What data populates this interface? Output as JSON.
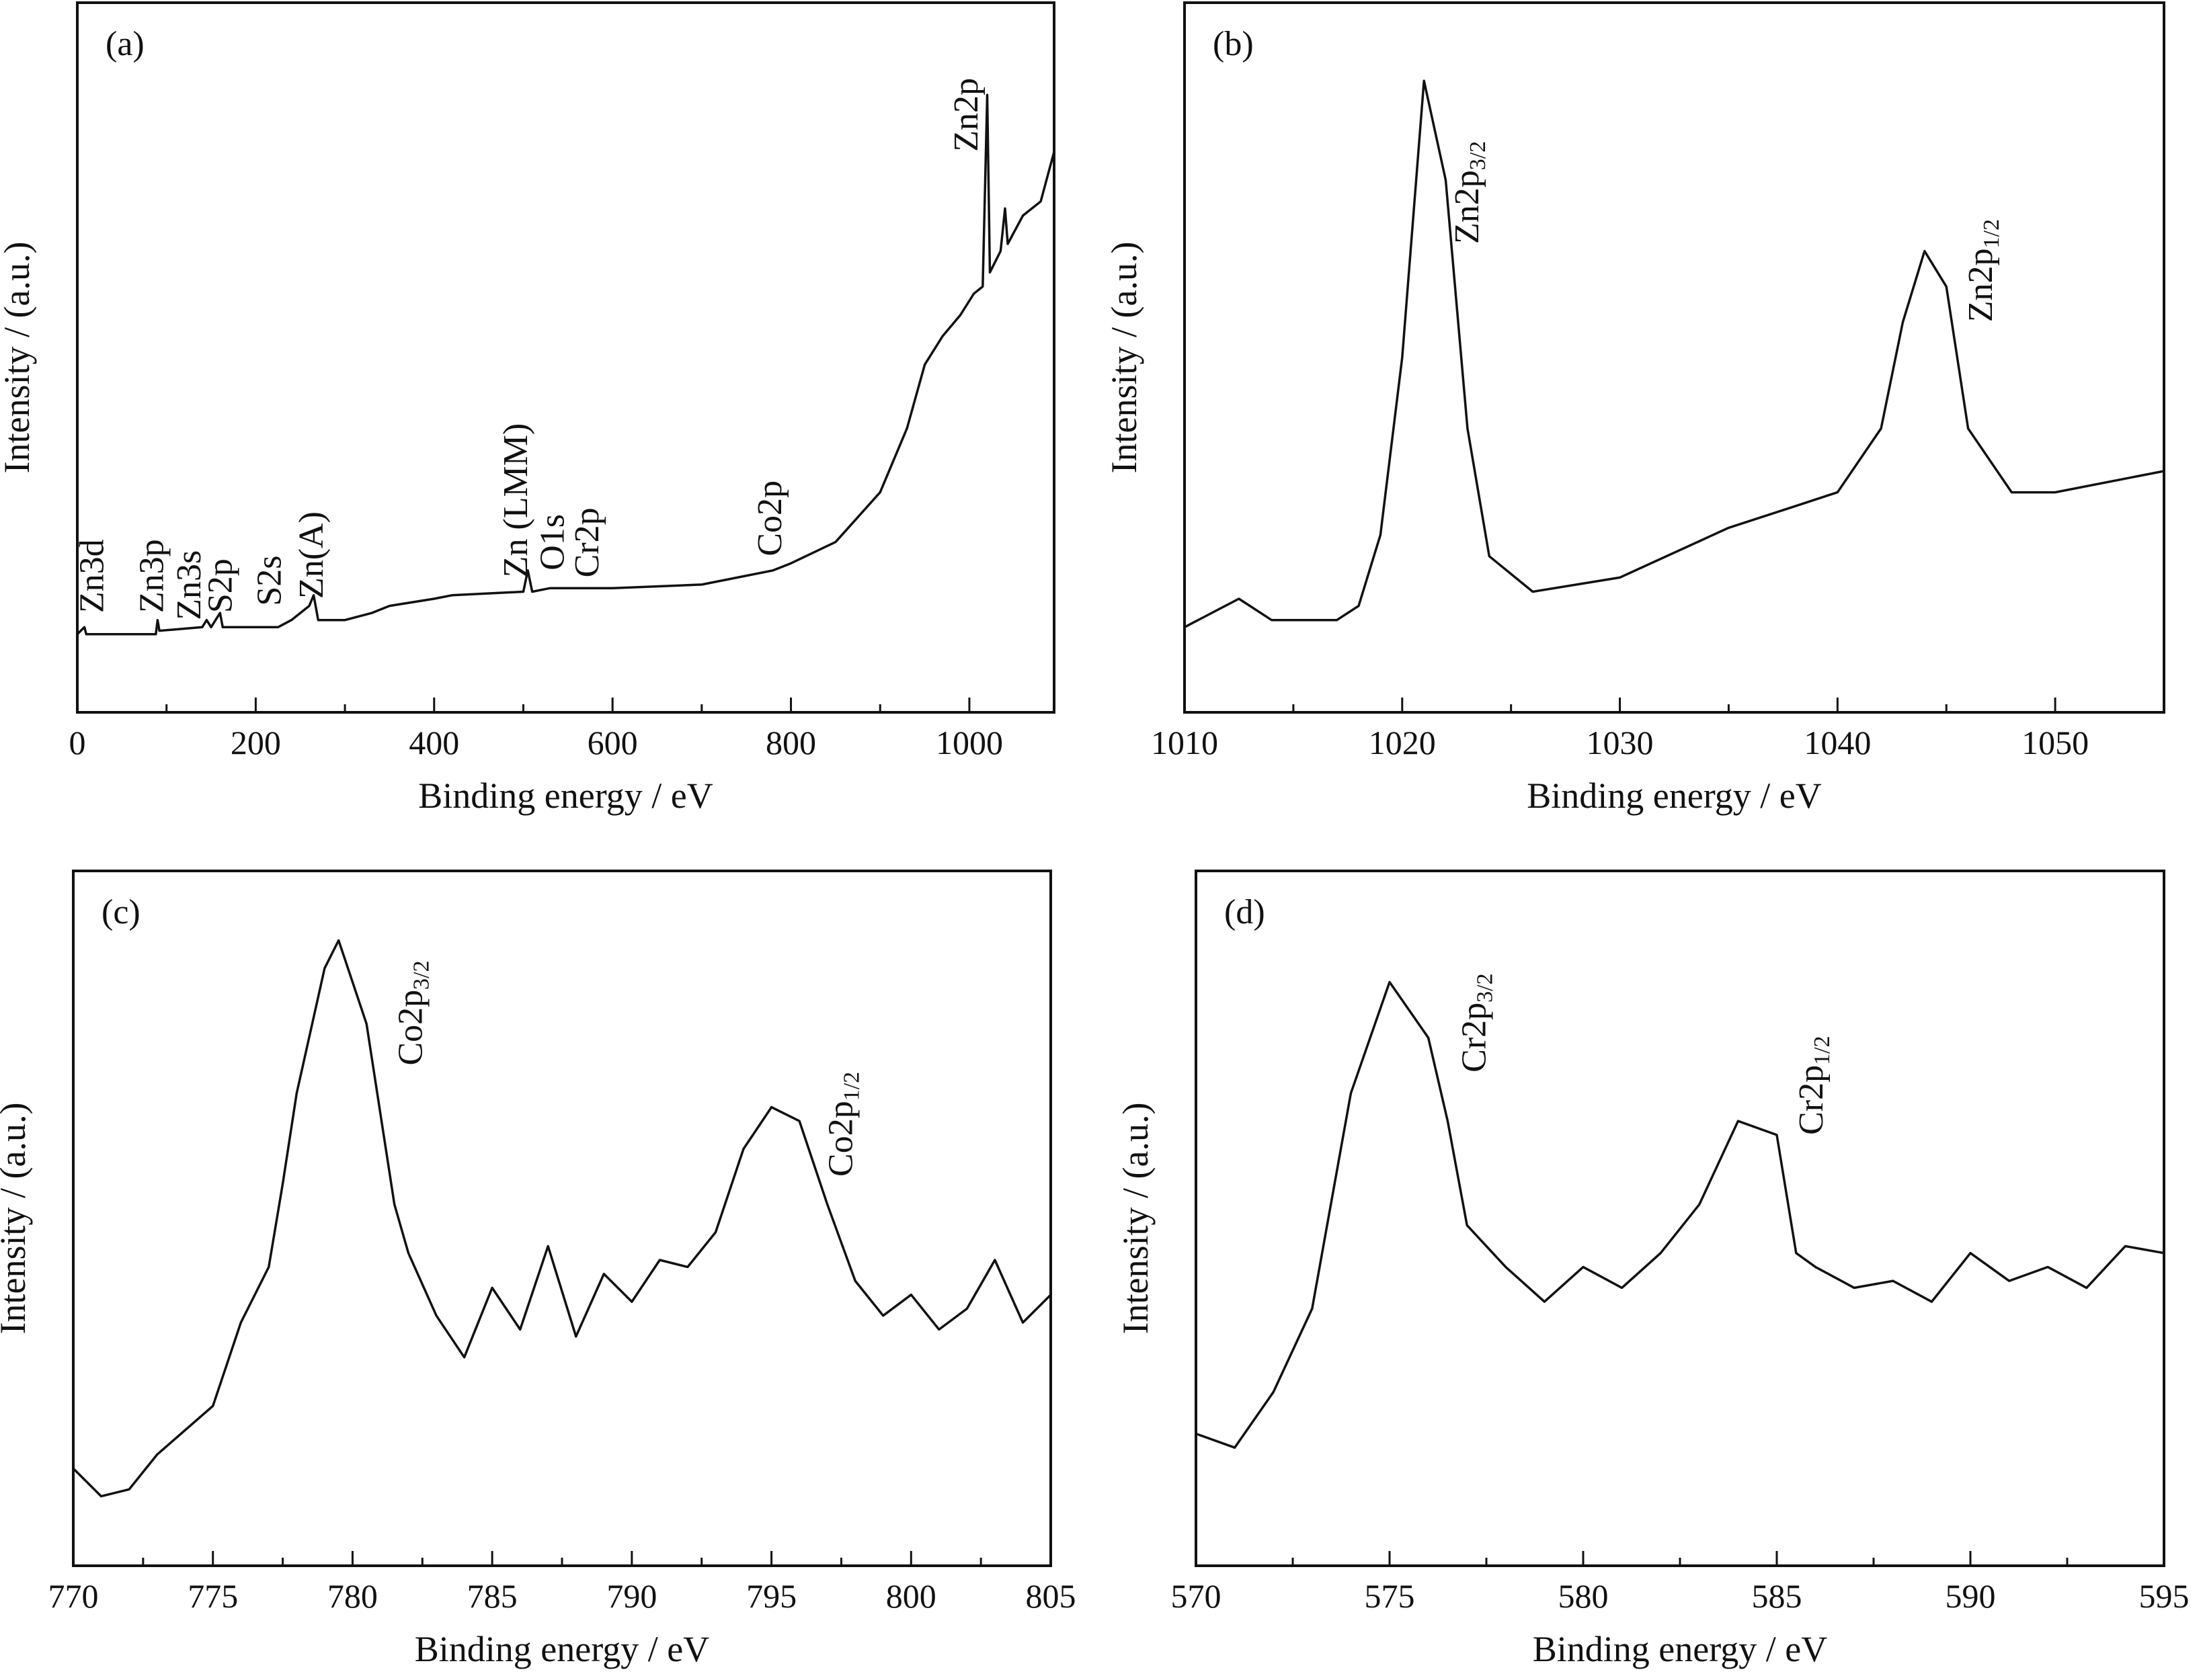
{
  "chart_data": [
    {
      "type": "line",
      "label": "(a)",
      "x_label": "Binding energy / eV",
      "y_label": "Intensity / (a.u.)",
      "xlim": [
        0,
        1095
      ],
      "xticks": [
        0,
        200,
        400,
        600,
        800,
        1000
      ],
      "xminorticks": [
        100,
        300,
        500,
        700,
        900
      ],
      "ylim": [
        0,
        100
      ],
      "color": "#111111",
      "x": [
        0,
        8,
        10,
        88,
        90,
        92,
        140,
        145,
        150,
        160,
        163,
        225,
        240,
        260,
        265,
        270,
        300,
        330,
        350,
        400,
        420,
        500,
        505,
        510,
        530,
        575,
        600,
        700,
        740,
        780,
        800,
        850,
        900,
        930,
        950,
        970,
        990,
        1005,
        1015,
        1020,
        1023,
        1035,
        1040,
        1043,
        1060,
        1080,
        1095
      ],
      "y": [
        11,
        12,
        11,
        11,
        13,
        11.5,
        12,
        13,
        12,
        14,
        12,
        12,
        13,
        15,
        16.5,
        13,
        13,
        14,
        15,
        16,
        16.5,
        17,
        20,
        17,
        17.5,
        17.5,
        17.5,
        18,
        19,
        20,
        21,
        24,
        31,
        40,
        49,
        53,
        56,
        59,
        60,
        87,
        62,
        65,
        71,
        66,
        70,
        72,
        79
      ],
      "annotations": [
        {
          "text": "Zn3d",
          "x": 17,
          "y": 14
        },
        {
          "text": "Zn3p",
          "x": 84,
          "y": 14
        },
        {
          "text": "Zn3s",
          "x": 126,
          "y": 13
        },
        {
          "text": "S2p",
          "x": 161,
          "y": 14
        },
        {
          "text": "S2s",
          "x": 216,
          "y": 15
        },
        {
          "text": "Zn(A)",
          "x": 263,
          "y": 16
        },
        {
          "text": "Zn (LMM)",
          "x": 492,
          "y": 19
        },
        {
          "text": "O1s",
          "x": 533,
          "y": 20
        },
        {
          "text": "Cr2p",
          "x": 572,
          "y": 19
        },
        {
          "text": "Co2p",
          "x": 777,
          "y": 22
        },
        {
          "text": "Zn2p",
          "x": 997,
          "y": 79
        }
      ]
    },
    {
      "type": "line",
      "label": "(b)",
      "x_label": "Binding energy / eV",
      "y_label": "Intensity / (a.u.)",
      "xlim": [
        1010,
        1055
      ],
      "xticks": [
        1010,
        1020,
        1030,
        1040,
        1050
      ],
      "xminorticks": [
        1015,
        1025,
        1035,
        1045
      ],
      "ylim": [
        0,
        100
      ],
      "color": "#111111",
      "x": [
        1010,
        1012.5,
        1014,
        1017,
        1018,
        1019,
        1020,
        1021,
        1022,
        1023,
        1024,
        1026,
        1030,
        1035,
        1038,
        1040,
        1042,
        1043,
        1044,
        1045,
        1046,
        1048,
        1050,
        1055
      ],
      "y": [
        12,
        16,
        13,
        13,
        15,
        25,
        50,
        89,
        75,
        40,
        22,
        17,
        19,
        26,
        29,
        31,
        40,
        55,
        65,
        60,
        40,
        31,
        31,
        34
      ],
      "annotations": [
        {
          "text": "Zn2p",
          "sub": "3/2",
          "x": 1023,
          "y": 66
        },
        {
          "text": "Zn2p",
          "sub": "1/2",
          "x": 1046.6,
          "y": 55
        }
      ]
    },
    {
      "type": "line",
      "label": "(c)",
      "x_label": "Binding energy / eV",
      "y_label": "Intensity / (a.u.)",
      "xlim": [
        770,
        805
      ],
      "xticks": [
        770,
        775,
        780,
        785,
        790,
        795,
        800,
        805
      ],
      "xminorticks": [
        772.5,
        777.5,
        782.5,
        787.5,
        792.5,
        797.5,
        802.5
      ],
      "ylim": [
        0,
        100
      ],
      "color": "#111111",
      "x": [
        770,
        771,
        772,
        773,
        775,
        776,
        777,
        777.5,
        778,
        779,
        779.5,
        780.5,
        781.5,
        782,
        783,
        784,
        785,
        786,
        787,
        788,
        789,
        790,
        791,
        792,
        793,
        794,
        795,
        796,
        797,
        798,
        799,
        800,
        801,
        802,
        803,
        804,
        805
      ],
      "y": [
        14,
        10,
        11,
        16,
        23,
        35,
        43,
        55,
        68,
        86,
        90,
        78,
        52,
        45,
        36,
        30,
        40,
        34,
        46,
        33,
        42,
        38,
        44,
        43,
        48,
        60,
        66,
        64,
        52,
        41,
        36,
        39,
        34,
        37,
        44,
        35,
        39
      ],
      "annotations": [
        {
          "text": "Co2p",
          "sub": "3/2",
          "x": 782.1,
          "y": 72
        },
        {
          "text": "Co2p",
          "sub": "1/2",
          "x": 797.5,
          "y": 56
        }
      ]
    },
    {
      "type": "line",
      "label": "(d)",
      "x_label": "Binding energy / eV",
      "y_label": "Intensity / (a.u.)",
      "xlim": [
        570,
        595
      ],
      "xticks": [
        570,
        575,
        580,
        585,
        590,
        595
      ],
      "xminorticks": [
        572.5,
        577.5,
        582.5,
        587.5,
        592.5
      ],
      "ylim": [
        0,
        100
      ],
      "color": "#111111",
      "x": [
        570,
        571,
        572,
        573,
        574,
        575,
        576,
        576.5,
        577,
        578,
        579,
        580,
        581,
        582,
        583,
        584,
        585,
        585.5,
        586,
        587,
        588,
        589,
        590,
        591,
        592,
        593,
        594,
        595
      ],
      "y": [
        19,
        17,
        25,
        37,
        68,
        84,
        76,
        64,
        49,
        43,
        38,
        43,
        40,
        45,
        52,
        64,
        62,
        45,
        43,
        40,
        41,
        38,
        45,
        41,
        43,
        40,
        46,
        45
      ],
      "annotations": [
        {
          "text": "Cr2p",
          "sub": "3/2",
          "x": 577.2,
          "y": 71
        },
        {
          "text": "Cr2p",
          "sub": "1/2",
          "x": 585.9,
          "y": 62
        }
      ]
    }
  ]
}
